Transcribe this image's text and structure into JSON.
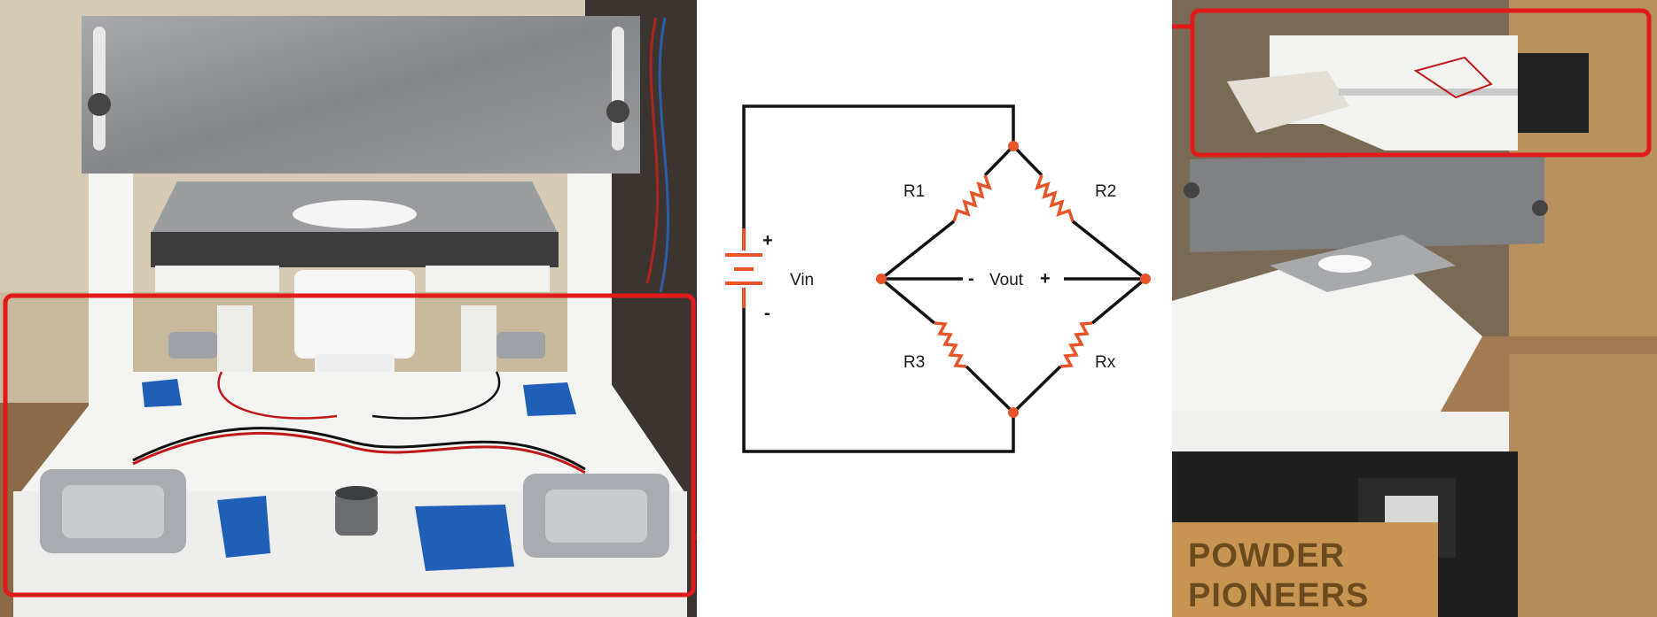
{
  "circuit": {
    "source_label": "Vin",
    "source_plus": "+",
    "source_minus": "-",
    "output_label": "Vout",
    "output_minus": "-",
    "output_plus": "+",
    "resistors": [
      "R1",
      "R2",
      "R3",
      "Rx"
    ]
  },
  "photo_right": {
    "brand_line1": "POWDER",
    "brand_line2": "PIONEERS"
  },
  "colors": {
    "highlight": "#e11a1a",
    "resistor": "#e8542a",
    "wire": "#111111"
  }
}
